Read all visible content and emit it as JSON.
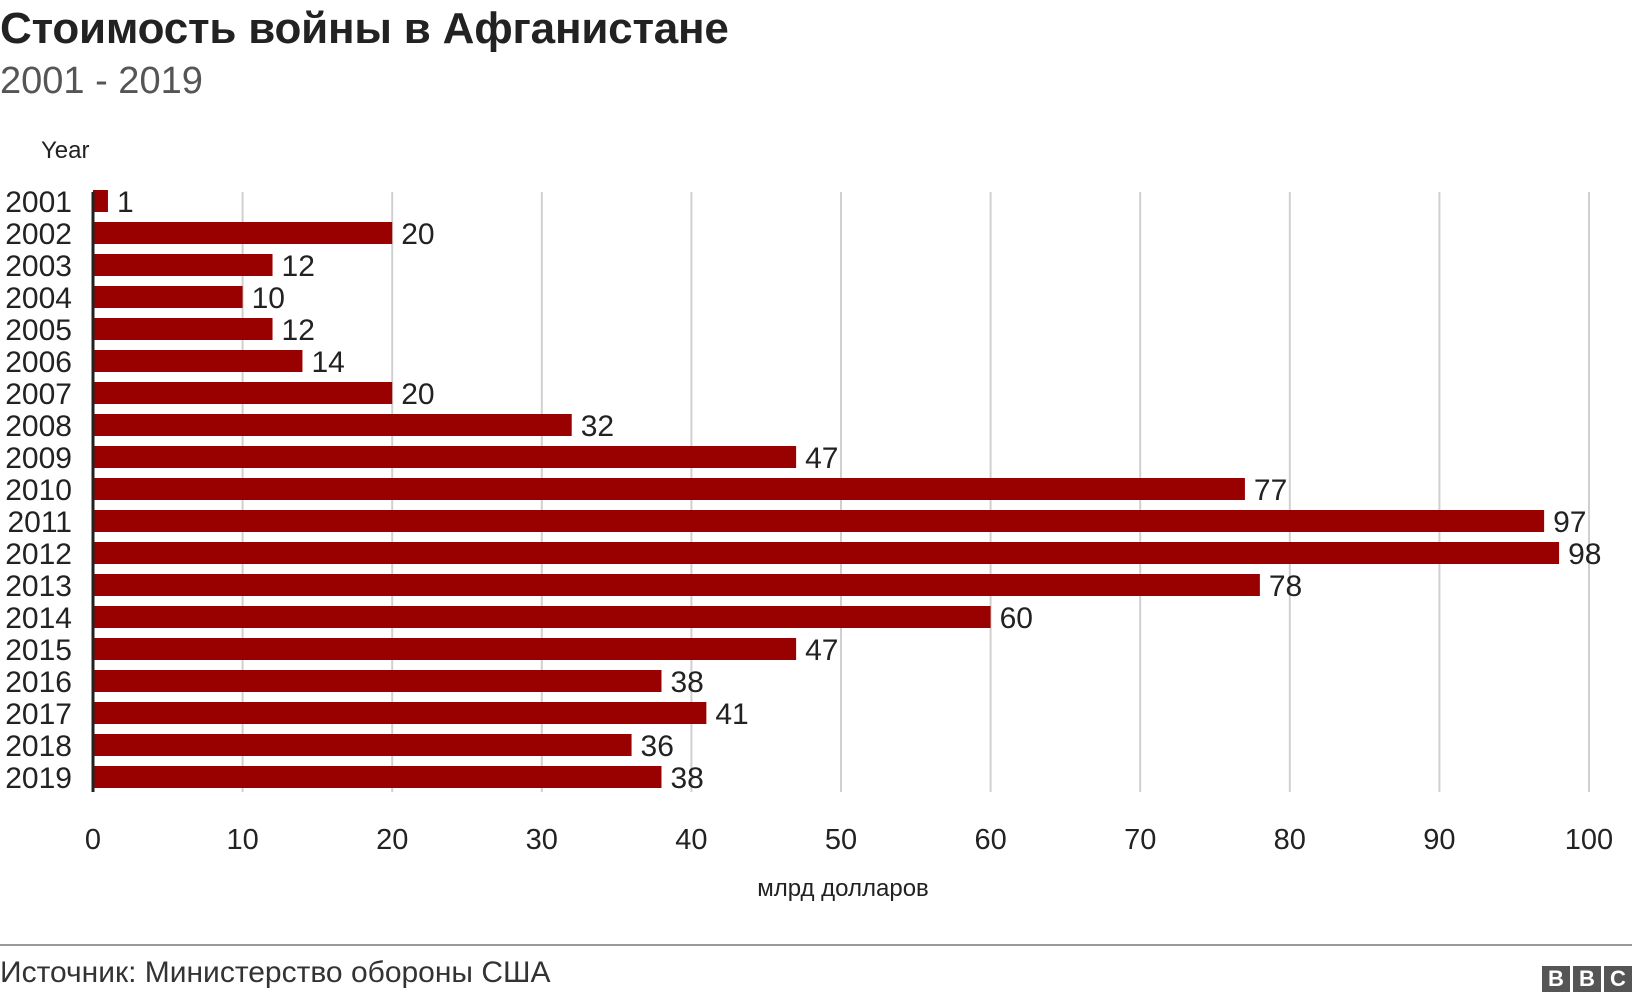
{
  "header": {
    "title": "Стоимость войны в Афганистане",
    "subtitle": "2001 - 2019"
  },
  "chart_data": {
    "type": "bar",
    "orientation": "horizontal",
    "y_axis_title": "Year",
    "xlabel": "млрд долларов",
    "xlim": [
      0,
      100
    ],
    "x_ticks": [
      0,
      10,
      20,
      30,
      40,
      50,
      60,
      70,
      80,
      90,
      100
    ],
    "grid": true,
    "bar_color": "#990000",
    "categories": [
      "2001",
      "2002",
      "2003",
      "2004",
      "2005",
      "2006",
      "2007",
      "2008",
      "2009",
      "2010",
      "2011",
      "2012",
      "2013",
      "2014",
      "2015",
      "2016",
      "2017",
      "2018",
      "2019"
    ],
    "values": [
      1,
      20,
      12,
      10,
      12,
      14,
      20,
      32,
      47,
      77,
      97,
      98,
      78,
      60,
      47,
      38,
      41,
      36,
      38
    ]
  },
  "footer": {
    "source": "Источник: Министерство обороны США",
    "logo_letters": [
      "B",
      "B",
      "C"
    ]
  }
}
